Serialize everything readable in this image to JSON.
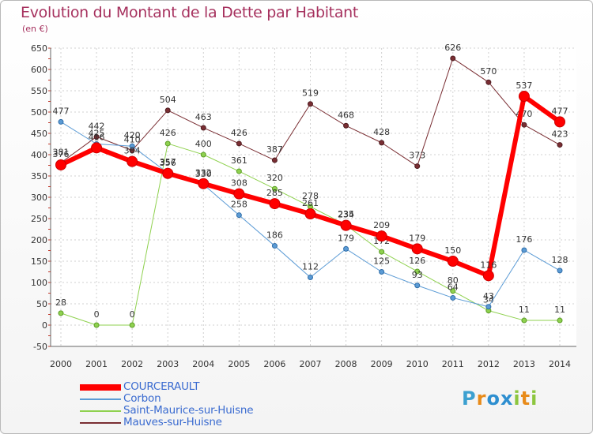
{
  "header": {
    "title": "Evolution du Montant de la Dette par Habitant",
    "subtitle": "(en €)"
  },
  "logo": {
    "text": "Proxiti",
    "letters": [
      "P",
      "r",
      "o",
      "x",
      "i",
      "t",
      "i"
    ],
    "colors": [
      "#3ca0d0",
      "#e88b1a",
      "#2e8fd0",
      "#2e8fd0",
      "#8dc63f",
      "#e88b1a",
      "#8dc63f"
    ]
  },
  "chart_data": {
    "type": "line",
    "title": "Evolution du Montant de la Dette par Habitant",
    "subtitle": "(en €)",
    "xlabel": "",
    "ylabel": "",
    "x": [
      "2000",
      "2001",
      "2002",
      "2003",
      "2004",
      "2005",
      "2006",
      "2007",
      "2008",
      "2009",
      "2010",
      "2011",
      "2012",
      "2013",
      "2014"
    ],
    "ylim": [
      -50,
      650
    ],
    "yticks": [
      -50,
      0,
      50,
      100,
      150,
      200,
      250,
      300,
      350,
      400,
      450,
      500,
      550,
      600,
      650
    ],
    "grid": true,
    "legend_position": "bottom-left",
    "series": [
      {
        "name": "Mauves-sur-Huisne",
        "color": "#7a2e33",
        "values": [
          381,
          442,
          410,
          504,
          463,
          426,
          387,
          519,
          468,
          428,
          373,
          626,
          570,
          470,
          423
        ]
      },
      {
        "name": "Saint-Maurice-sur-Huisne",
        "color": "#8fd14f",
        "values": [
          28,
          0,
          0,
          426,
          400,
          361,
          320,
          278,
          235,
          172,
          126,
          80,
          34,
          11,
          11
        ]
      },
      {
        "name": "Corbon",
        "color": "#5b9bd5",
        "values": [
          477,
          425,
          420,
          357,
          330,
          258,
          186,
          112,
          179,
          125,
          93,
          64,
          43,
          176,
          128
        ]
      },
      {
        "name": "COURCERAULT",
        "color": "#ff0000",
        "values": [
          376,
          416,
          384,
          356,
          332,
          308,
          285,
          261,
          234,
          209,
          179,
          150,
          116,
          537,
          477
        ]
      }
    ]
  }
}
